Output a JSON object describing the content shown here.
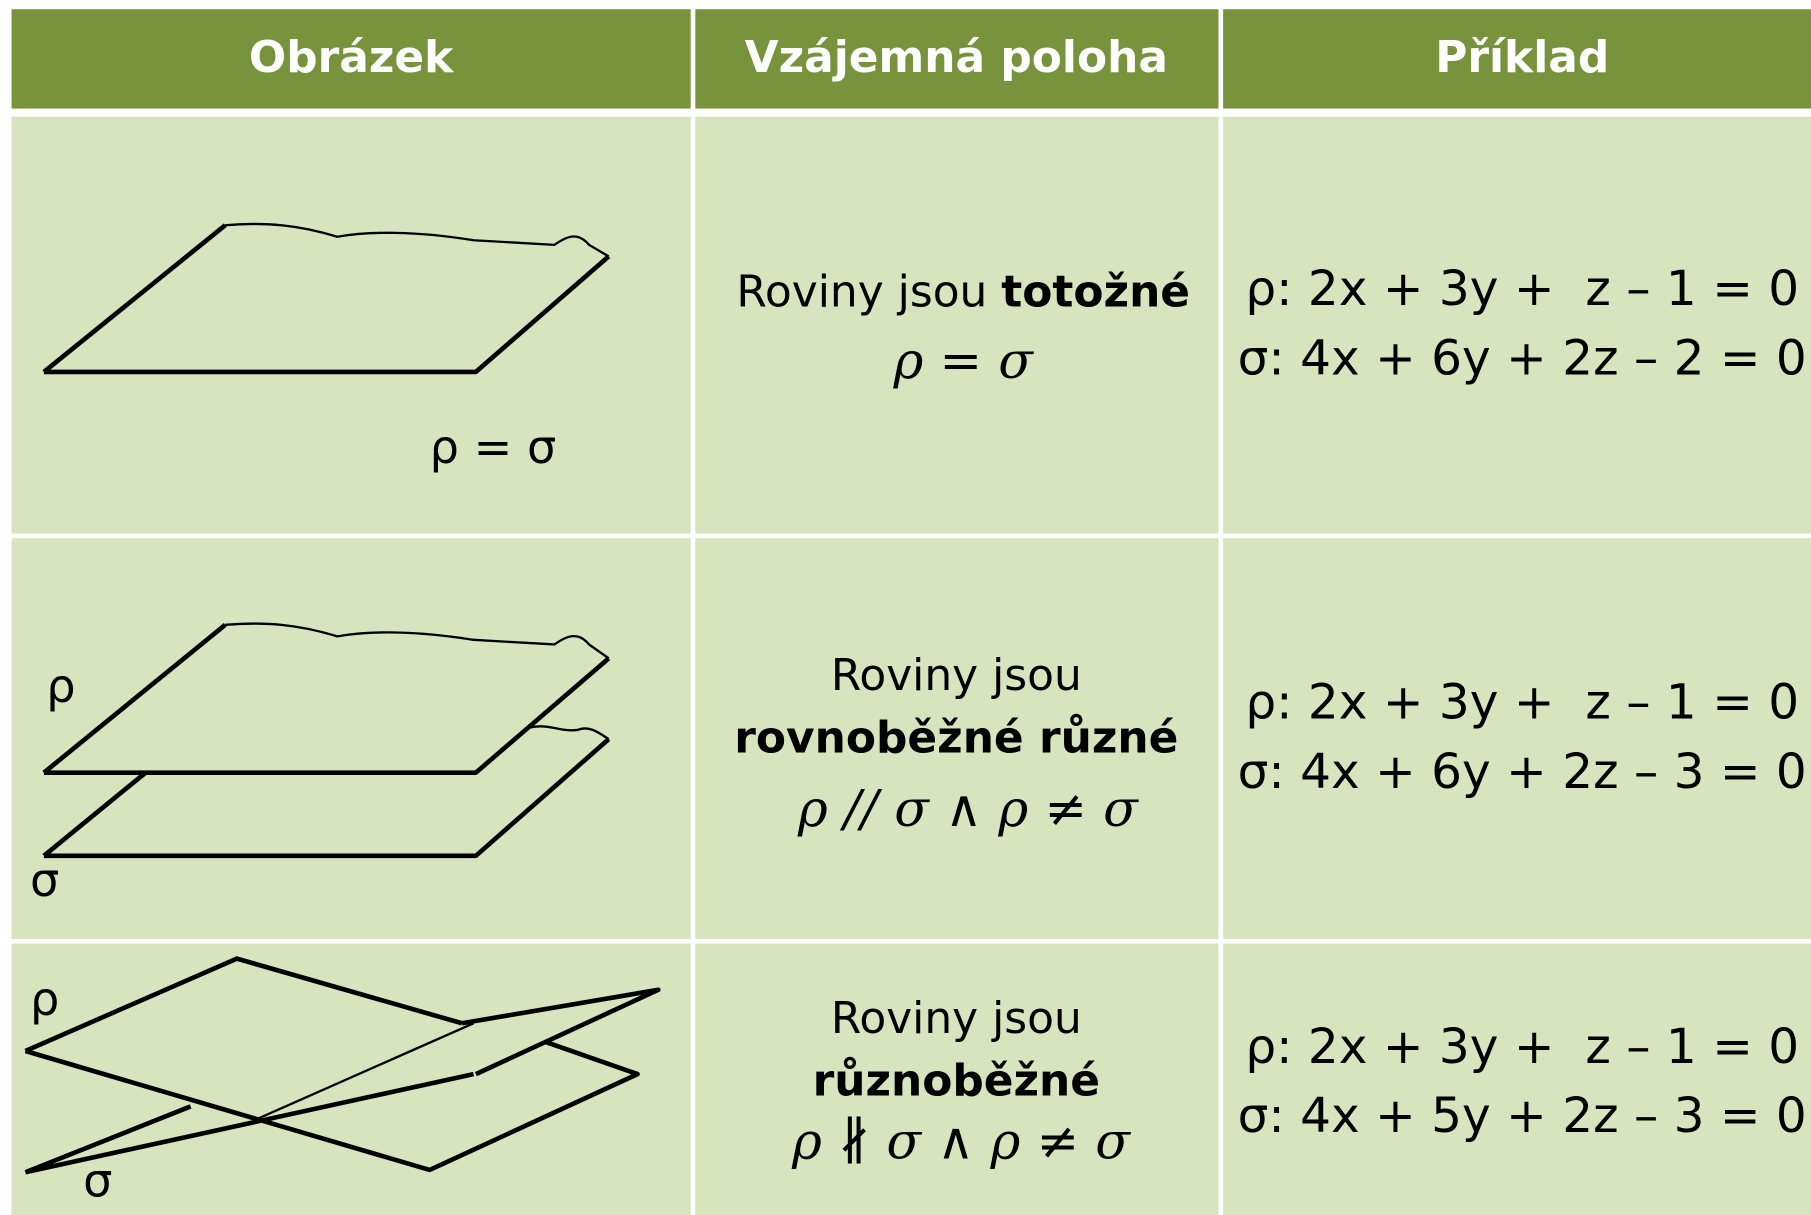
{
  "header": {
    "columns": [
      "Obrázek",
      "Vzájemná poloha",
      "Příklad"
    ]
  },
  "rows": [
    {
      "figure_labels": [
        "ρ = σ"
      ],
      "position": {
        "text": "Roviny jsou ",
        "bold": "totožné",
        "formula": "ρ = σ"
      },
      "example": [
        "ρ: 2x + 3y +  z – 1 = 0",
        "σ: 4x + 6y + 2z – 2 = 0"
      ]
    },
    {
      "figure_labels": [
        "ρ",
        "σ"
      ],
      "position": {
        "text": "Roviny jsou",
        "bold": "rovnoběžné různé",
        "formula": "ρ // σ ∧ ρ ≠ σ"
      },
      "example": [
        "ρ: 2x + 3y +  z – 1 = 0",
        "σ: 4x + 6y + 2z – 3 = 0"
      ]
    },
    {
      "figure_labels": [
        "ρ",
        "σ"
      ],
      "position": {
        "text": "Roviny jsou",
        "bold": "různoběžné",
        "formula": "ρ ∦ σ ∧ ρ ≠ σ"
      },
      "example": [
        "ρ: 2x + 3y +  z – 1 = 0",
        "σ: 4x + 5y + 2z – 3 = 0"
      ]
    }
  ]
}
